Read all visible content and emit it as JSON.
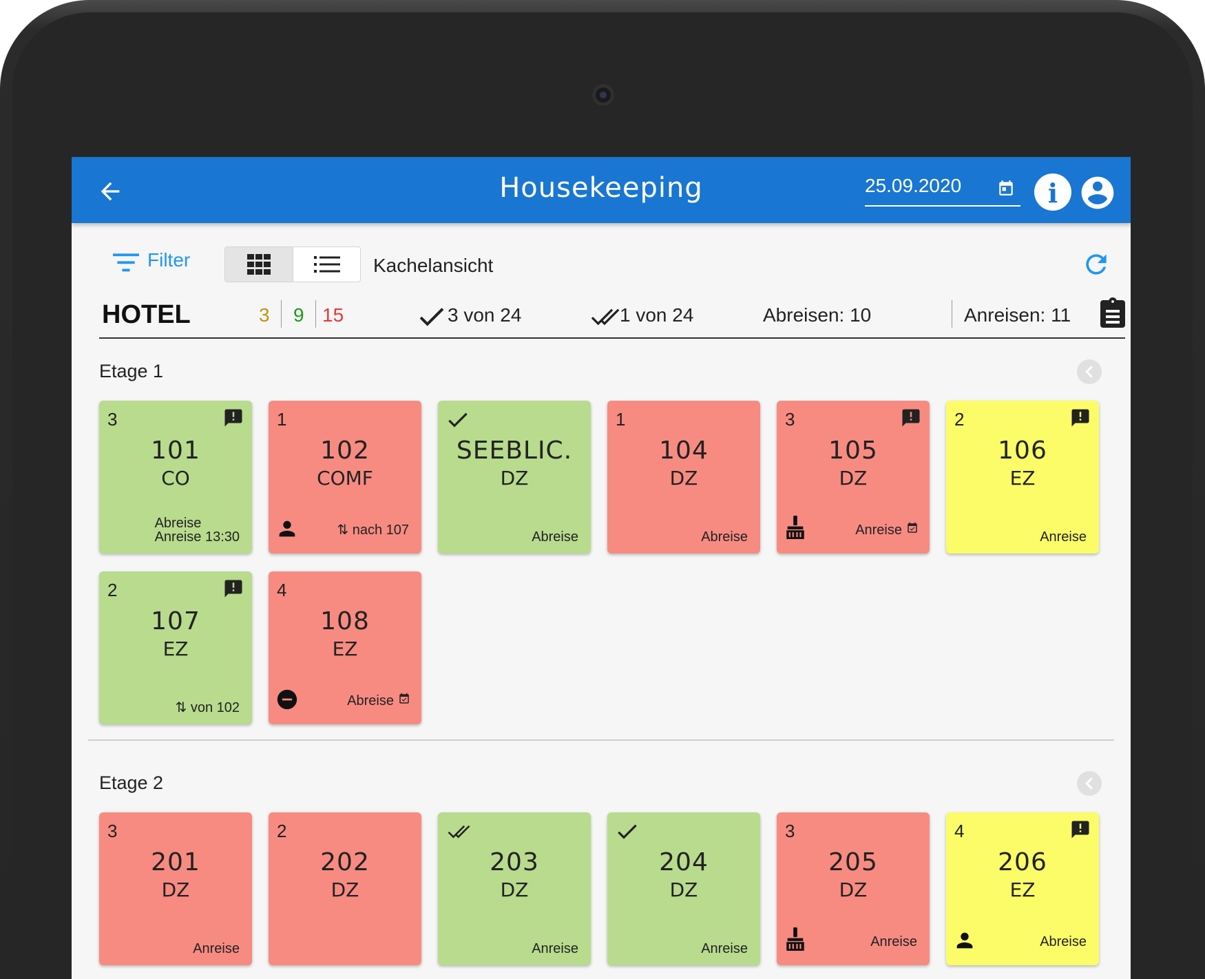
{
  "header": {
    "title": "Housekeeping",
    "date": "25.09.2020"
  },
  "toolbar": {
    "filter_label": "Filter",
    "view_label": "Kachelansicht"
  },
  "summary": {
    "hotel": "HOTEL",
    "count_yellow": "3",
    "count_green": "9",
    "count_red": "15",
    "checked": "3 von 24",
    "double_checked": "1 von 24",
    "departures": "Abreisen: 10",
    "arrivals": "Anreisen: 11"
  },
  "colors": {
    "appbar": "#1976d2",
    "green": "#b8db8e",
    "red": "#f78b82",
    "yellow": "#fbfc67",
    "count_yellow": "#c79212",
    "count_green": "#1a9a1a",
    "count_red": "#e53935"
  },
  "floors": [
    {
      "title": "Etage 1",
      "rooms": [
        {
          "num": "3",
          "room": "101",
          "type": "CO",
          "color": "green",
          "tr_icon": "alert-message-icon",
          "footer": [
            "Abreise",
            "Anreise 13:30"
          ]
        },
        {
          "num": "1",
          "room": "102",
          "type": "COMF",
          "color": "red",
          "bl_icon": "person-icon",
          "footer": [
            "⇅ nach 107"
          ]
        },
        {
          "tl_icon": "check-icon",
          "room": "SEEBLIC.",
          "type": "DZ",
          "color": "green",
          "footer": [
            "Abreise"
          ]
        },
        {
          "num": "1",
          "room": "104",
          "type": "DZ",
          "color": "red",
          "footer": [
            "Abreise"
          ]
        },
        {
          "num": "3",
          "room": "105",
          "type": "DZ",
          "color": "red",
          "tr_icon": "alert-message-icon",
          "bl_icon": "broom-icon",
          "footer": [
            "Anreise"
          ],
          "footer_icon": "calendar-check-icon"
        },
        {
          "num": "2",
          "room": "106",
          "type": "EZ",
          "color": "yellow",
          "tr_icon": "alert-message-icon",
          "footer": [
            "Anreise"
          ]
        },
        {
          "num": "2",
          "room": "107",
          "type": "EZ",
          "color": "green",
          "tr_icon": "alert-message-icon",
          "footer": [
            "⇅ von 102"
          ]
        },
        {
          "num": "4",
          "room": "108",
          "type": "EZ",
          "color": "red",
          "bl_icon": "do-not-disturb-icon",
          "footer": [
            "Abreise"
          ],
          "footer_icon": "calendar-check-icon"
        }
      ]
    },
    {
      "title": "Etage 2",
      "rooms": [
        {
          "num": "3",
          "room": "201",
          "type": "DZ",
          "color": "red",
          "footer": [
            "Anreise"
          ]
        },
        {
          "num": "2",
          "room": "202",
          "type": "DZ",
          "color": "red",
          "footer": []
        },
        {
          "tl_icon": "double-check-icon",
          "room": "203",
          "type": "DZ",
          "color": "green",
          "footer": [
            "Anreise"
          ]
        },
        {
          "tl_icon": "check-icon",
          "room": "204",
          "type": "DZ",
          "color": "green",
          "footer": [
            "Anreise"
          ]
        },
        {
          "num": "3",
          "room": "205",
          "type": "DZ",
          "color": "red",
          "bl_icon": "broom-icon",
          "footer": [
            "Anreise"
          ]
        },
        {
          "num": "4",
          "room": "206",
          "type": "EZ",
          "color": "yellow",
          "tr_icon": "alert-message-icon",
          "bl_icon": "person-icon",
          "footer": [
            "Abreise"
          ]
        }
      ]
    }
  ]
}
